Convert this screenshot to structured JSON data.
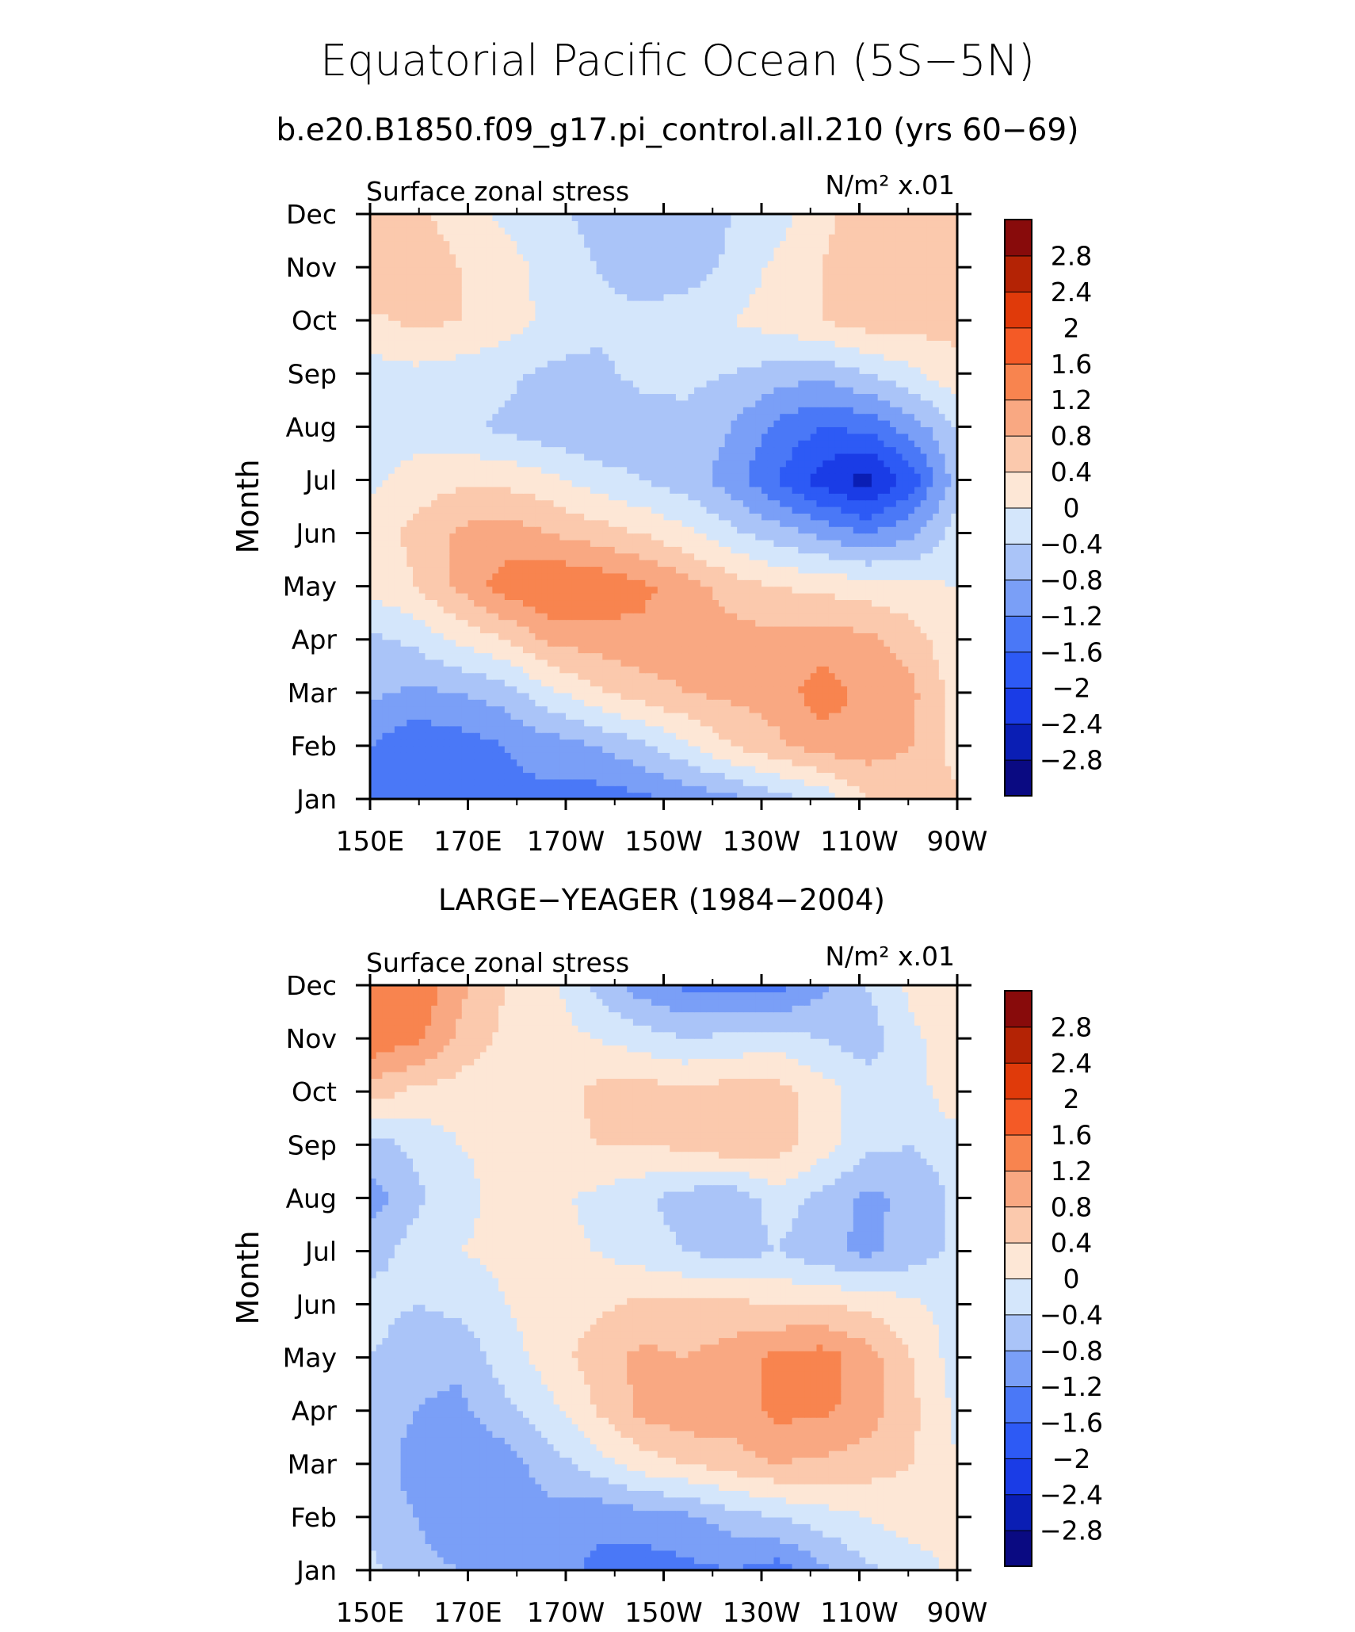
{
  "figure": {
    "title": "Equatorial Pacific Ocean (5S−5N)",
    "subtitle": "b.e20.B1850.f09_g17.pi_control.all.210 (yrs 60−69)"
  },
  "colorbar": {
    "levels": [
      -2.8,
      -2.4,
      -2,
      -1.6,
      -1.2,
      -0.8,
      -0.4,
      0,
      0.4,
      0.8,
      1.2,
      1.6,
      2,
      2.4,
      2.8
    ],
    "labels": [
      "2.8",
      "2.4",
      "2",
      "1.6",
      "1.2",
      "0.8",
      "0.4",
      "0",
      "−0.4",
      "−0.8",
      "−1.2",
      "−1.6",
      "−2",
      "−2.4",
      "−2.8"
    ],
    "colors": [
      "#0a0a82",
      "#0a1eb4",
      "#1a3ce6",
      "#2d5af5",
      "#4a78f7",
      "#7a9ff7",
      "#aac4f8",
      "#d4e6fb",
      "#fde7d6",
      "#fbc9ad",
      "#f9a882",
      "#f8844f",
      "#f45a26",
      "#e03a0a",
      "#b42305",
      "#880b0b"
    ]
  },
  "chart_data": [
    {
      "type": "heatmap",
      "title": "",
      "left_label": "Surface zonal stress",
      "units_label": "N/m² x.01",
      "xlabel": "",
      "ylabel": "Month",
      "x_ticks": [
        "150E",
        "170E",
        "170W",
        "150W",
        "130W",
        "110W",
        "90W"
      ],
      "x_values": [
        150,
        170,
        190,
        210,
        230,
        250,
        270
      ],
      "y_ticks": [
        "Jan",
        "Feb",
        "Mar",
        "Apr",
        "May",
        "Jun",
        "Jul",
        "Aug",
        "Sep",
        "Oct",
        "Nov",
        "Dec"
      ],
      "xlim": [
        150,
        270
      ],
      "vrange": [
        -2.8,
        2.8
      ],
      "grid": [
        [
          -1.2,
          -1.4,
          -1.6,
          -1.3,
          -1.3,
          -1.4,
          -1.3,
          -1.1,
          -0.9,
          -0.6,
          -0.3,
          0.4,
          0.6,
          0.5
        ],
        [
          -1.2,
          -1.5,
          -1.4,
          -1.2,
          -1.0,
          -0.8,
          -0.5,
          -0.1,
          0.4,
          0.7,
          1.0,
          1.0,
          0.8,
          0.2
        ],
        [
          -0.7,
          -0.9,
          -0.8,
          -0.6,
          -0.1,
          0.3,
          0.6,
          0.8,
          0.9,
          1.0,
          1.4,
          1.1,
          0.9,
          0.2
        ],
        [
          -0.5,
          -0.3,
          0.1,
          0.4,
          0.9,
          1.0,
          1.1,
          1.0,
          1.0,
          0.9,
          1.0,
          0.9,
          0.6,
          0.1
        ],
        [
          0.1,
          0.4,
          0.9,
          1.4,
          1.6,
          1.5,
          1.3,
          1.0,
          0.6,
          0.4,
          0.3,
          0.2,
          0.1,
          0.0
        ],
        [
          0.2,
          0.5,
          0.9,
          1.0,
          0.8,
          0.6,
          0.4,
          0.1,
          -0.3,
          -0.6,
          -0.9,
          -1.2,
          -0.9,
          -0.2
        ],
        [
          -0.1,
          0.2,
          0.3,
          0.3,
          0.1,
          -0.2,
          -0.4,
          -0.6,
          -1.0,
          -1.6,
          -2.2,
          -2.6,
          -1.8,
          -0.6
        ],
        [
          -0.3,
          -0.2,
          -0.3,
          -0.5,
          -0.7,
          -0.8,
          -0.6,
          -0.5,
          -0.8,
          -1.3,
          -1.6,
          -1.5,
          -1.0,
          -0.4
        ],
        [
          -0.2,
          -0.1,
          -0.2,
          -0.3,
          -0.5,
          -0.5,
          -0.3,
          -0.3,
          -0.4,
          -0.6,
          -0.7,
          -0.4,
          -0.1,
          0.3
        ],
        [
          0.3,
          0.5,
          0.4,
          0.2,
          -0.1,
          -0.3,
          -0.3,
          -0.2,
          0.0,
          0.2,
          0.4,
          0.6,
          0.6,
          0.5
        ],
        [
          0.8,
          0.7,
          0.4,
          0.2,
          -0.2,
          -0.4,
          -0.6,
          -0.6,
          -0.3,
          0.1,
          0.4,
          0.6,
          0.6,
          0.6
        ],
        [
          0.7,
          0.5,
          0.2,
          -0.1,
          -0.3,
          -0.5,
          -0.7,
          -0.8,
          -0.4,
          -0.2,
          0.3,
          0.6,
          0.6,
          0.6
        ]
      ]
    },
    {
      "type": "heatmap",
      "title": "LARGE−YEAGER (1984−2004)",
      "left_label": "Surface zonal stress",
      "units_label": "N/m² x.01",
      "xlabel": "",
      "ylabel": "Month",
      "x_ticks": [
        "150E",
        "170E",
        "170W",
        "150W",
        "130W",
        "110W",
        "90W"
      ],
      "x_values": [
        150,
        170,
        190,
        210,
        230,
        250,
        270
      ],
      "y_ticks": [
        "Jan",
        "Feb",
        "Mar",
        "Apr",
        "May",
        "Jun",
        "Jul",
        "Aug",
        "Sep",
        "Oct",
        "Nov",
        "Dec"
      ],
      "xlim": [
        150,
        270
      ],
      "vrange": [
        -2.8,
        2.8
      ],
      "grid": [
        [
          -0.3,
          -0.7,
          -0.8,
          -0.9,
          -1.0,
          -1.3,
          -1.4,
          -1.3,
          -1.2,
          -1.4,
          -0.9,
          -0.5,
          -0.2,
          0.1
        ],
        [
          -0.5,
          -0.8,
          -1.0,
          -1.0,
          -0.9,
          -1.1,
          -1.0,
          -0.9,
          -0.6,
          -0.4,
          -0.2,
          0.0,
          0.2,
          0.1
        ],
        [
          -0.5,
          -1.0,
          -1.1,
          -1.0,
          -0.6,
          -0.2,
          0.2,
          0.4,
          0.6,
          0.8,
          0.7,
          0.6,
          0.4,
          0.0
        ],
        [
          -0.5,
          -0.8,
          -0.9,
          -0.5,
          -0.1,
          0.4,
          0.9,
          1.1,
          1.0,
          1.3,
          1.3,
          1.0,
          0.5,
          -0.1
        ],
        [
          -0.4,
          -0.7,
          -0.7,
          -0.2,
          0.2,
          0.6,
          0.9,
          0.8,
          1.0,
          1.3,
          1.4,
          1.0,
          0.4,
          -0.2
        ],
        [
          -0.2,
          -0.4,
          -0.3,
          0.0,
          0.2,
          0.3,
          0.5,
          0.5,
          0.5,
          0.4,
          0.4,
          0.3,
          0.1,
          -0.2
        ],
        [
          -0.6,
          -0.2,
          0.0,
          0.1,
          0.1,
          0.0,
          -0.2,
          -0.4,
          -0.6,
          -0.4,
          -0.7,
          -0.9,
          -0.6,
          -0.3
        ],
        [
          -1.0,
          -0.5,
          -0.1,
          0.1,
          0.1,
          -0.1,
          -0.3,
          -0.6,
          -0.7,
          -0.2,
          -0.5,
          -0.9,
          -0.7,
          -0.3
        ],
        [
          -0.6,
          -0.3,
          0.0,
          0.1,
          0.2,
          0.4,
          0.4,
          0.5,
          0.7,
          0.6,
          0.2,
          -0.3,
          -0.4,
          -0.2
        ],
        [
          0.6,
          0.3,
          0.2,
          0.1,
          0.2,
          0.5,
          0.6,
          0.5,
          0.6,
          0.6,
          0.2,
          -0.2,
          -0.2,
          0.3
        ],
        [
          1.5,
          1.3,
          0.7,
          0.3,
          0.2,
          0.0,
          -0.2,
          -0.4,
          -0.3,
          -0.2,
          -0.4,
          -0.6,
          -0.1,
          0.3
        ],
        [
          1.6,
          1.6,
          0.9,
          0.4,
          0.1,
          -0.5,
          -1.0,
          -1.3,
          -1.4,
          -1.4,
          -0.9,
          -0.4,
          0.1,
          0.3
        ]
      ]
    }
  ]
}
